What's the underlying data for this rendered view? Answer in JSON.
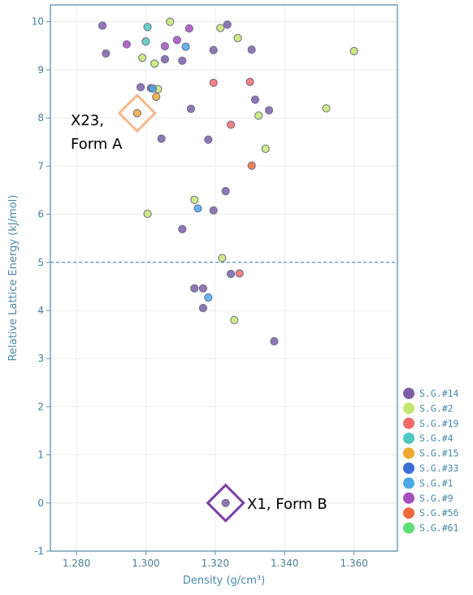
{
  "chart_data": {
    "type": "scatter",
    "title": "",
    "xlabel": "Density (g/cm³)",
    "ylabel": "Relative Lattice Energy (kJ/mol)",
    "xlim": [
      1.2725,
      1.3725
    ],
    "ylim": [
      -1,
      10.35
    ],
    "x_ticks": [
      "1.280",
      "1.300",
      "1.320",
      "1.340",
      "1.360"
    ],
    "y_ticks": [
      "-1",
      "0",
      "1",
      "2",
      "3",
      "4",
      "5",
      "6",
      "7",
      "8",
      "9",
      "10"
    ],
    "x_tick_values": [
      1.28,
      1.3,
      1.32,
      1.34,
      1.36
    ],
    "y_tick_values": [
      -1,
      0,
      1,
      2,
      3,
      4,
      5,
      6,
      7,
      8,
      9,
      10
    ],
    "grid": true,
    "legend_position": "bottom-right",
    "reference_line": {
      "y": 5,
      "style": "dashed"
    },
    "series": [
      {
        "name": "S.G.#14",
        "color": "#7b5ea7",
        "points": [
          [
            1.2875,
            9.92
          ],
          [
            1.3235,
            9.94
          ],
          [
            1.2885,
            9.34
          ],
          [
            1.3055,
            9.22
          ],
          [
            1.3105,
            9.19
          ],
          [
            1.3195,
            9.41
          ],
          [
            1.3305,
            9.42
          ],
          [
            1.2985,
            8.64
          ],
          [
            1.3015,
            8.62
          ],
          [
            1.3315,
            8.38
          ],
          [
            1.3355,
            8.16
          ],
          [
            1.313,
            8.19
          ],
          [
            1.3045,
            7.57
          ],
          [
            1.318,
            7.55
          ],
          [
            1.323,
            6.48
          ],
          [
            1.3195,
            6.08
          ],
          [
            1.3105,
            5.69
          ],
          [
            1.314,
            4.46
          ],
          [
            1.3165,
            4.46
          ],
          [
            1.3245,
            4.76
          ],
          [
            1.3165,
            4.05
          ],
          [
            1.337,
            3.36
          ],
          [
            1.323,
            0.0
          ]
        ]
      },
      {
        "name": "S.G.#2",
        "color": "#c4e66e",
        "points": [
          [
            1.307,
            10.0
          ],
          [
            1.3215,
            9.87
          ],
          [
            1.3265,
            9.66
          ],
          [
            1.299,
            9.25
          ],
          [
            1.3025,
            9.13
          ],
          [
            1.36,
            9.39
          ],
          [
            1.3035,
            8.6
          ],
          [
            1.352,
            8.2
          ],
          [
            1.3325,
            8.05
          ],
          [
            1.3345,
            7.36
          ],
          [
            1.314,
            6.3
          ],
          [
            1.3005,
            6.01
          ],
          [
            1.322,
            5.09
          ],
          [
            1.3255,
            3.8
          ]
        ]
      },
      {
        "name": "S.G.#19",
        "color": "#f06a6a",
        "points": [
          [
            1.3195,
            8.73
          ],
          [
            1.33,
            8.75
          ],
          [
            1.3245,
            7.86
          ],
          [
            1.327,
            4.77
          ]
        ]
      },
      {
        "name": "S.G.#4",
        "color": "#4fc8c0",
        "points": [
          [
            1.3005,
            9.89
          ],
          [
            1.3,
            9.59
          ]
        ]
      },
      {
        "name": "S.G.#15",
        "color": "#f0a830",
        "points": [
          [
            1.303,
            8.44
          ],
          [
            1.2975,
            8.1
          ]
        ]
      },
      {
        "name": "S.G.#33",
        "color": "#3a6fd8",
        "points": []
      },
      {
        "name": "S.G.#1",
        "color": "#49a8e6",
        "points": [
          [
            1.302,
            8.61
          ],
          [
            1.3115,
            9.48
          ],
          [
            1.315,
            6.12
          ],
          [
            1.318,
            4.27
          ]
        ]
      },
      {
        "name": "S.G.#9",
        "color": "#a64dbf",
        "points": [
          [
            1.2945,
            9.53
          ],
          [
            1.3125,
            9.86
          ],
          [
            1.309,
            9.62
          ],
          [
            1.3055,
            9.49
          ]
        ]
      },
      {
        "name": "S.G.#56",
        "color": "#ee6a3a",
        "points": [
          [
            1.3305,
            7.01
          ]
        ]
      },
      {
        "name": "S.G.#61",
        "color": "#5ce07a",
        "points": []
      }
    ],
    "annotations": [
      {
        "label_lines": [
          "X23,",
          "Form A"
        ],
        "x": 1.2975,
        "y": 8.1,
        "color": "#f5b98a",
        "marker": "diamond"
      },
      {
        "label_lines": [
          "X1, Form B"
        ],
        "x": 1.323,
        "y": 0.0,
        "color": "#7b3fa6",
        "marker": "diamond"
      }
    ]
  }
}
